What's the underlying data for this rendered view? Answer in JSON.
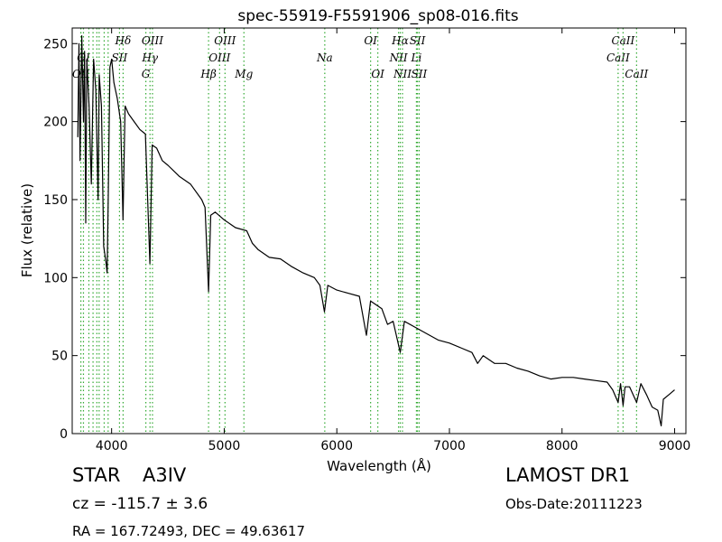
{
  "chart_data": {
    "type": "line",
    "title": "spec-55919-F5591906_sp08-016.fits",
    "xlabel": "Wavelength (Å)",
    "ylabel": "Flux (relative)",
    "xlim": [
      3650,
      9100
    ],
    "ylim": [
      0,
      260
    ],
    "xticks": [
      4000,
      5000,
      6000,
      7000,
      8000,
      9000
    ],
    "yticks": [
      0,
      50,
      100,
      150,
      200,
      250
    ],
    "grid": false,
    "series": [
      {
        "color": "#000000",
        "points": [
          [
            3700,
            190
          ],
          [
            3710,
            250
          ],
          [
            3720,
            175
          ],
          [
            3735,
            255
          ],
          [
            3750,
            200
          ],
          [
            3760,
            245
          ],
          [
            3770,
            135
          ],
          [
            3780,
            240
          ],
          [
            3800,
            210
          ],
          [
            3820,
            160
          ],
          [
            3840,
            240
          ],
          [
            3860,
            220
          ],
          [
            3880,
            150
          ],
          [
            3890,
            230
          ],
          [
            3910,
            210
          ],
          [
            3930,
            120
          ],
          [
            3950,
            110
          ],
          [
            3960,
            103
          ],
          [
            3970,
            150
          ],
          [
            3985,
            235
          ],
          [
            4000,
            240
          ],
          [
            4020,
            225
          ],
          [
            4050,
            215
          ],
          [
            4080,
            200
          ],
          [
            4101,
            137
          ],
          [
            4120,
            210
          ],
          [
            4150,
            205
          ],
          [
            4200,
            200
          ],
          [
            4250,
            195
          ],
          [
            4300,
            192
          ],
          [
            4340,
            109
          ],
          [
            4360,
            185
          ],
          [
            4400,
            183
          ],
          [
            4450,
            175
          ],
          [
            4500,
            172
          ],
          [
            4600,
            165
          ],
          [
            4700,
            160
          ],
          [
            4800,
            150
          ],
          [
            4830,
            145
          ],
          [
            4861,
            91
          ],
          [
            4880,
            140
          ],
          [
            4920,
            142
          ],
          [
            5000,
            137
          ],
          [
            5100,
            132
          ],
          [
            5200,
            130
          ],
          [
            5250,
            122
          ],
          [
            5300,
            118
          ],
          [
            5400,
            113
          ],
          [
            5500,
            112
          ],
          [
            5600,
            107
          ],
          [
            5700,
            103
          ],
          [
            5800,
            100
          ],
          [
            5850,
            95
          ],
          [
            5890,
            78
          ],
          [
            5920,
            95
          ],
          [
            6000,
            92
          ],
          [
            6100,
            90
          ],
          [
            6200,
            88
          ],
          [
            6263,
            63
          ],
          [
            6300,
            85
          ],
          [
            6400,
            80
          ],
          [
            6450,
            70
          ],
          [
            6500,
            72
          ],
          [
            6563,
            52
          ],
          [
            6600,
            72
          ],
          [
            6700,
            68
          ],
          [
            6800,
            64
          ],
          [
            6900,
            60
          ],
          [
            7000,
            58
          ],
          [
            7100,
            55
          ],
          [
            7200,
            52
          ],
          [
            7250,
            45
          ],
          [
            7300,
            50
          ],
          [
            7400,
            45
          ],
          [
            7500,
            45
          ],
          [
            7600,
            42
          ],
          [
            7700,
            40
          ],
          [
            7800,
            37
          ],
          [
            7900,
            35
          ],
          [
            8000,
            36
          ],
          [
            8100,
            36
          ],
          [
            8200,
            35
          ],
          [
            8300,
            34
          ],
          [
            8400,
            33
          ],
          [
            8450,
            28
          ],
          [
            8498,
            20
          ],
          [
            8520,
            32
          ],
          [
            8542,
            18
          ],
          [
            8560,
            30
          ],
          [
            8600,
            30
          ],
          [
            8662,
            20
          ],
          [
            8700,
            32
          ],
          [
            8750,
            25
          ],
          [
            8800,
            17
          ],
          [
            8850,
            15
          ],
          [
            8880,
            5
          ],
          [
            8900,
            22
          ],
          [
            8950,
            25
          ],
          [
            9000,
            28
          ]
        ]
      }
    ],
    "lines": [
      {
        "wavelength": 3727,
        "label": "OII",
        "row": 2
      },
      {
        "wavelength": 3750,
        "label": "OI",
        "row": 1
      },
      {
        "wavelength": 3798,
        "label": "",
        "row": 0
      },
      {
        "wavelength": 3835,
        "label": "",
        "row": 0
      },
      {
        "wavelength": 3869,
        "label": "",
        "row": 0
      },
      {
        "wavelength": 3889,
        "label": "",
        "row": 0
      },
      {
        "wavelength": 3934,
        "label": "",
        "row": 0
      },
      {
        "wavelength": 3969,
        "label": "",
        "row": 0
      },
      {
        "wavelength": 4070,
        "label": "SII",
        "row": 1
      },
      {
        "wavelength": 4102,
        "label": "Hδ",
        "row": 0
      },
      {
        "wavelength": 4304,
        "label": "G",
        "row": 2
      },
      {
        "wavelength": 4341,
        "label": "Hγ",
        "row": 1
      },
      {
        "wavelength": 4363,
        "label": "OIII",
        "row": 0
      },
      {
        "wavelength": 4861,
        "label": "Hβ",
        "row": 2
      },
      {
        "wavelength": 4959,
        "label": "OIII",
        "row": 1
      },
      {
        "wavelength": 5007,
        "label": "OIII",
        "row": 0
      },
      {
        "wavelength": 5175,
        "label": "Mg",
        "row": 2
      },
      {
        "wavelength": 5893,
        "label": "Na",
        "row": 1
      },
      {
        "wavelength": 6300,
        "label": "OI",
        "row": 0
      },
      {
        "wavelength": 6364,
        "label": "OI",
        "row": 2
      },
      {
        "wavelength": 6548,
        "label": "NII",
        "row": 1
      },
      {
        "wavelength": 6563,
        "label": "Hα",
        "row": 0
      },
      {
        "wavelength": 6583,
        "label": "NII",
        "row": 2
      },
      {
        "wavelength": 6707,
        "label": "Li",
        "row": 1
      },
      {
        "wavelength": 6716,
        "label": "SII",
        "row": 0
      },
      {
        "wavelength": 6731,
        "label": "SII",
        "row": 2
      },
      {
        "wavelength": 8498,
        "label": "CaII",
        "row": 1
      },
      {
        "wavelength": 8542,
        "label": "CaII",
        "row": 0
      },
      {
        "wavelength": 8662,
        "label": "CaII",
        "row": 2
      }
    ],
    "line_color": "#33aa33"
  },
  "footer": {
    "object_type": "STAR",
    "subclass": "A3IV",
    "survey": "LAMOST DR1",
    "cz": "cz = -115.7 ± 3.6",
    "obs_date": "Obs-Date:20111223",
    "coords": "RA = 167.72493, DEC = 49.63617"
  }
}
